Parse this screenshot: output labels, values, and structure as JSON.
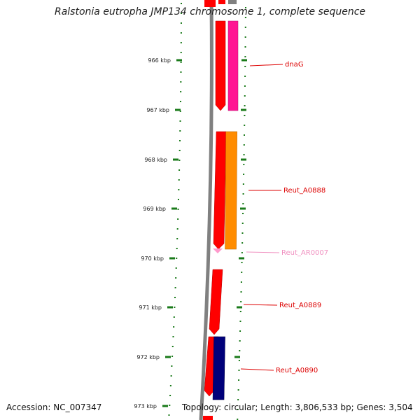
{
  "title": "Ralstonia eutropha JMP134 chromosome 1, complete sequence",
  "accession_text": "Accession: NC_007347",
  "summary_text": "Topology: circular; Length: 3,806,533 bp; Genes: 3,504",
  "colors": {
    "backbone": "#808080",
    "ruler": "#1a7a1a",
    "forward_cds": "#ff0000",
    "reverse_magenta": "#ff1493",
    "reverse_orange": "#ff8c00",
    "reverse_navy": "#00007a",
    "rna": "#ff99cc"
  },
  "ruler_ticks": [
    {
      "label": "966 kbp"
    },
    {
      "label": "967 kbp"
    },
    {
      "label": "968 kbp"
    },
    {
      "label": "969 kbp"
    },
    {
      "label": "970 kbp"
    },
    {
      "label": "971 kbp"
    },
    {
      "label": "972 kbp"
    },
    {
      "label": "973 kbp"
    }
  ],
  "gene_labels": [
    {
      "name": "dnaG",
      "color": "#dd0000"
    },
    {
      "name": "Reut_A0888",
      "color": "#dd0000"
    },
    {
      "name": "Reut_AR0007",
      "color": "#f090c0"
    },
    {
      "name": "Reut_A0889",
      "color": "#dd0000"
    },
    {
      "name": "Reut_A0890",
      "color": "#dd0000"
    }
  ]
}
